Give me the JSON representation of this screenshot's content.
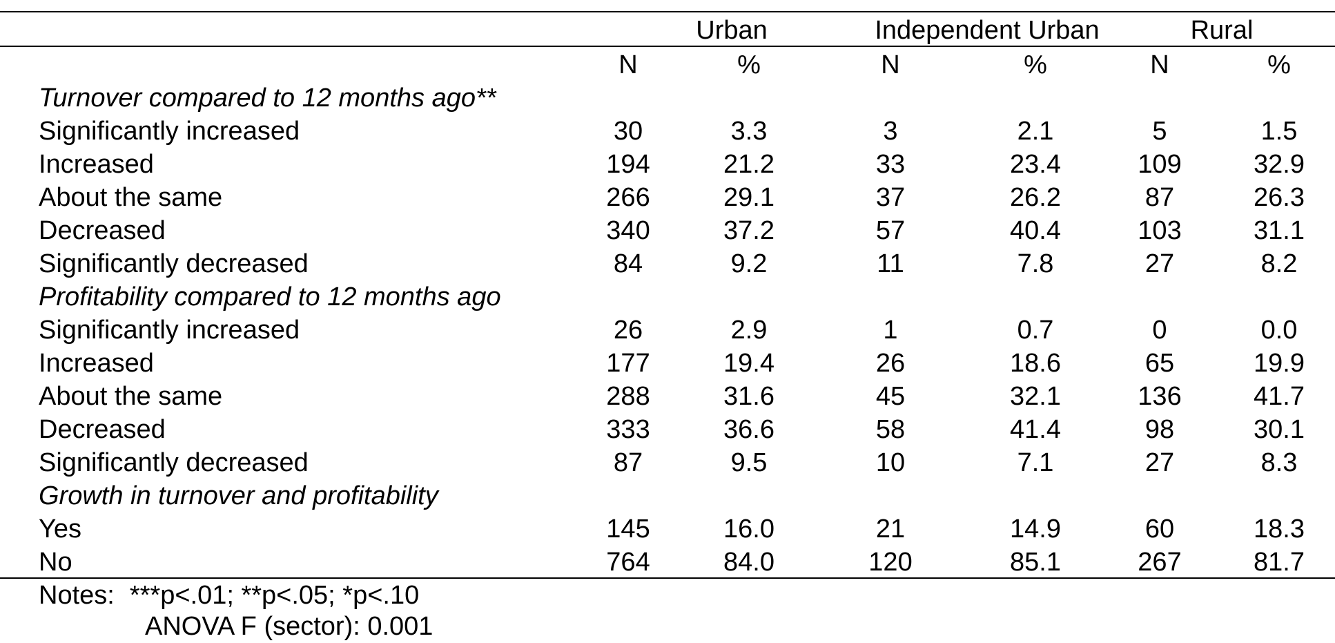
{
  "header": {
    "groups": [
      "Urban",
      "Independent Urban",
      "Rural"
    ],
    "subheaders": [
      "N",
      "%",
      "N",
      "%",
      "N",
      "%"
    ]
  },
  "rows": [
    {
      "type": "section",
      "label": "Turnover compared to 12 months ago**"
    },
    {
      "type": "data",
      "label": "Significantly increased",
      "values": [
        "30",
        "3.3",
        "3",
        "2.1",
        "5",
        "1.5"
      ]
    },
    {
      "type": "data",
      "label": "Increased",
      "values": [
        "194",
        "21.2",
        "33",
        "23.4",
        "109",
        "32.9"
      ]
    },
    {
      "type": "data",
      "label": "About the same",
      "values": [
        "266",
        "29.1",
        "37",
        "26.2",
        "87",
        "26.3"
      ]
    },
    {
      "type": "data",
      "label": "Decreased",
      "values": [
        "340",
        "37.2",
        "57",
        "40.4",
        "103",
        "31.1"
      ]
    },
    {
      "type": "data",
      "label": "Significantly decreased",
      "values": [
        "84",
        "9.2",
        "11",
        "7.8",
        "27",
        "8.2"
      ]
    },
    {
      "type": "section",
      "label": "Profitability compared to 12 months ago"
    },
    {
      "type": "data",
      "label": "Significantly increased",
      "values": [
        "26",
        "2.9",
        "1",
        "0.7",
        "0",
        "0.0"
      ]
    },
    {
      "type": "data",
      "label": "Increased",
      "values": [
        "177",
        "19.4",
        "26",
        "18.6",
        "65",
        "19.9"
      ]
    },
    {
      "type": "data",
      "label": "About the same",
      "values": [
        "288",
        "31.6",
        "45",
        "32.1",
        "136",
        "41.7"
      ]
    },
    {
      "type": "data",
      "label": "Decreased",
      "values": [
        "333",
        "36.6",
        "58",
        "41.4",
        "98",
        "30.1"
      ]
    },
    {
      "type": "data",
      "label": "Significantly decreased",
      "values": [
        "87",
        "9.5",
        "10",
        "7.1",
        "27",
        "8.3"
      ]
    },
    {
      "type": "section",
      "label": "Growth in turnover and profitability"
    },
    {
      "type": "data",
      "label": "Yes",
      "values": [
        "145",
        "16.0",
        "21",
        "14.9",
        "60",
        "18.3"
      ]
    },
    {
      "type": "data",
      "label": "No",
      "values": [
        "764",
        "84.0",
        "120",
        "85.1",
        "267",
        "81.7"
      ]
    }
  ],
  "notes": {
    "label": "Notes:",
    "text": "***p<.01; **p<.05; *p<.10",
    "second_line": "ANOVA F (sector): 0.001"
  }
}
